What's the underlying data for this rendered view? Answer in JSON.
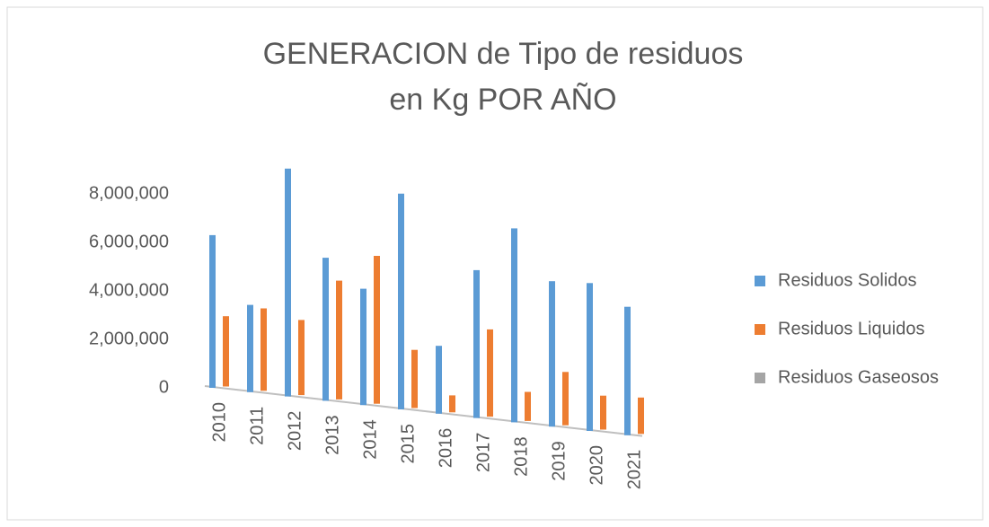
{
  "chart_data": {
    "type": "bar",
    "title": [
      "GENERACION de Tipo de residuos",
      "en Kg POR AÑO"
    ],
    "categories": [
      "2010",
      "2011",
      "2012",
      "2013",
      "2014",
      "2015",
      "2016",
      "2017",
      "2018",
      "2019",
      "2020",
      "2021"
    ],
    "series": [
      {
        "name": "Residuos Solidos",
        "color": "#5b9bd5",
        "values": [
          6300000,
          3600000,
          9400000,
          5900000,
          4800000,
          8900000,
          2800000,
          6100000,
          8000000,
          6000000,
          6100000,
          5300000
        ]
      },
      {
        "name": "Residuos Liquidos",
        "color": "#ed7d31",
        "values": [
          2900000,
          3400000,
          3100000,
          4900000,
          6100000,
          2400000,
          700000,
          3600000,
          1200000,
          2200000,
          1400000,
          1500000
        ]
      },
      {
        "name": "Residuos Gaseosos",
        "color": "#a5a5a5",
        "values": [
          0,
          0,
          0,
          0,
          0,
          0,
          0,
          0,
          0,
          0,
          0,
          0
        ]
      }
    ],
    "ylim": [
      0,
      10000000
    ],
    "yticks": [
      0,
      {
        "value": 2000000,
        "label": "2,000,000"
      },
      {
        "value": 4000000,
        "label": "4,000,000"
      },
      {
        "value": 6000000,
        "label": "6,000,000"
      },
      {
        "value": 8000000,
        "label": "8,000,000"
      }
    ],
    "legend": "right"
  }
}
